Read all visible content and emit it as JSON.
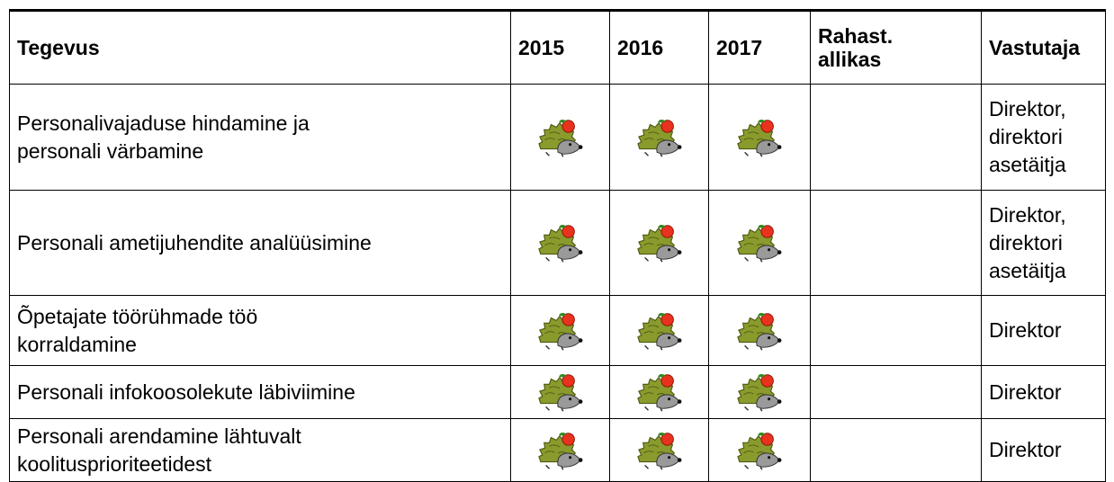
{
  "table": {
    "header": {
      "activity": "Tegevus",
      "years": [
        "2015",
        "2016",
        "2017"
      ],
      "source": [
        "Rahast.",
        "allikas"
      ],
      "responsible": "Vastutaja"
    },
    "rows": [
      {
        "activity": [
          "Personalivajaduse hindamine ja",
          "personali värbamine"
        ],
        "responsible": [
          "Direktor,",
          "direktori",
          "asetäitja"
        ]
      },
      {
        "activity": [
          "Personali ametijuhendite analüüsimine"
        ],
        "responsible": [
          "Direktor,",
          "direktori",
          "asetäitja"
        ]
      },
      {
        "activity": [
          "Õpetajate töörühmade töö",
          "korraldamine"
        ],
        "responsible": [
          "Direktor"
        ]
      },
      {
        "activity": [
          "Personali infokoosolekute läbiviimine"
        ],
        "responsible": [
          "Direktor"
        ]
      },
      {
        "activity": [
          "Personali arendamine lähtuvalt",
          "koolitusprioriteetidest"
        ],
        "responsible": [
          "Direktor"
        ]
      }
    ]
  }
}
